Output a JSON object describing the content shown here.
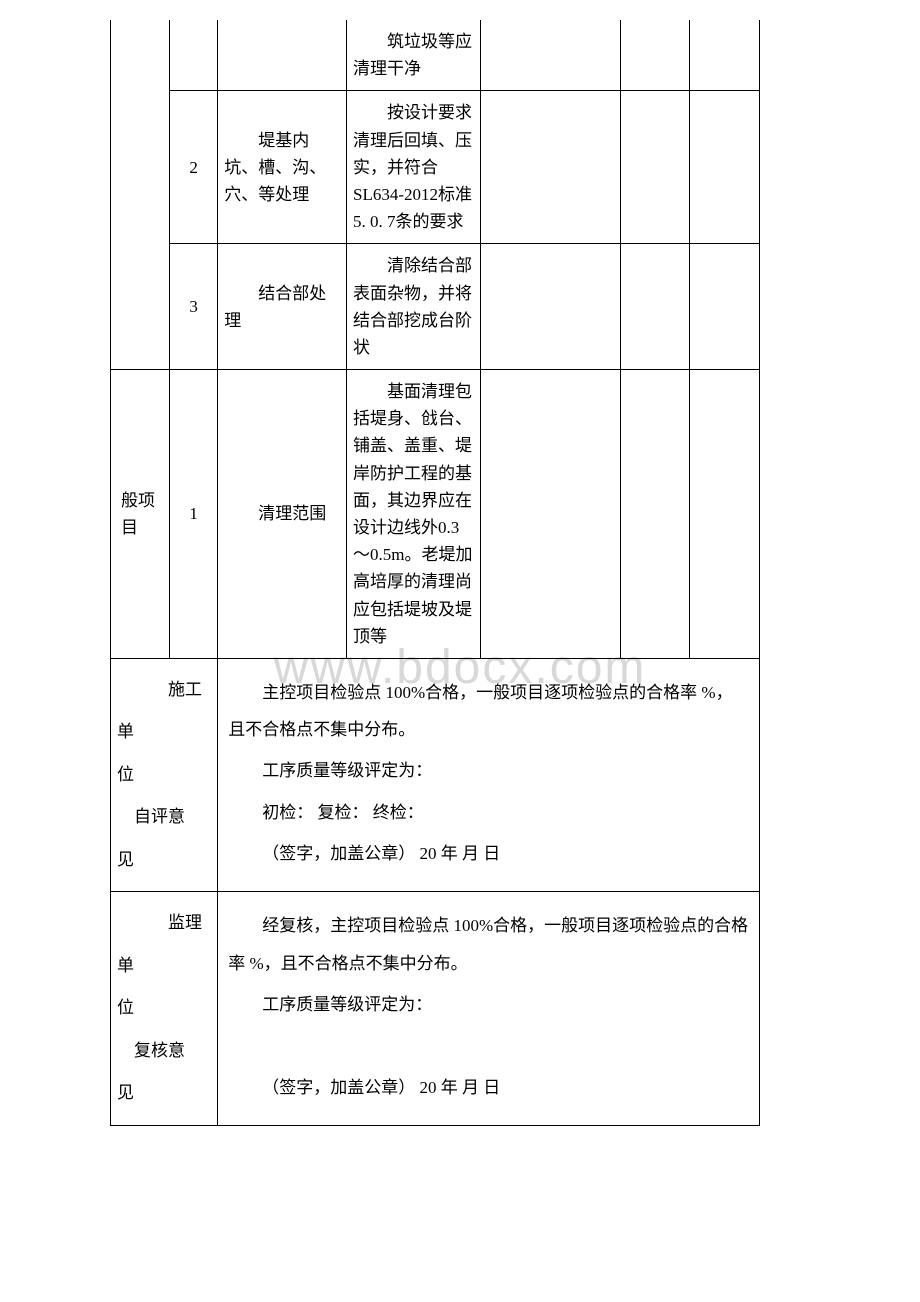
{
  "watermark": "www.bdocx.com",
  "table": {
    "rows": [
      {
        "col1": "",
        "col2": "",
        "col3": "",
        "col4": "筑垃圾等应清理干净",
        "col5": "",
        "col6": "",
        "col7": ""
      },
      {
        "col2": "2",
        "col3": "堤基内坑、槽、沟、穴、等处理",
        "col4": "按设计要求清理后回填、压实，并符合SL634-2012标准 5. 0. 7条的要求",
        "col5": "",
        "col6": "",
        "col7": ""
      },
      {
        "col2": "3",
        "col3": "结合部处理",
        "col4": "清除结合部表面杂物，并将结合部挖成台阶状",
        "col5": "",
        "col6": "",
        "col7": ""
      },
      {
        "col1": "般项目",
        "col2": "1",
        "col3": "清理范围",
        "col4": "基面清理包括堤身、戗台、铺盖、盖重、堤岸防护工程的基面，其边界应在设计边线外0.3～0.5m。老堤加高培厚的清理尚应包括堤坡及堤顶等",
        "col5": "",
        "col6": "",
        "col7": ""
      }
    ],
    "selfEvaluation": {
      "label": "施工单位\n自评意见",
      "line1": "主控项目检验点 100%合格，一般项目逐项检验点的合格率 %，且不合格点不集中分布。",
      "line2": "工序质量等级评定为：",
      "line3": "初检： 复检： 终检：",
      "line4": "（签字，加盖公章） 20 年 月 日"
    },
    "reviewOpinion": {
      "label": "监理单位\n复核意见",
      "line1": "经复核，主控项目检验点 100%合格，一般项目逐项检验点的合格率 %，且不合格点不集中分布。",
      "line2": "工序质量等级评定为：",
      "line3": "",
      "line4": "（签字，加盖公章） 20 年 月 日"
    }
  }
}
